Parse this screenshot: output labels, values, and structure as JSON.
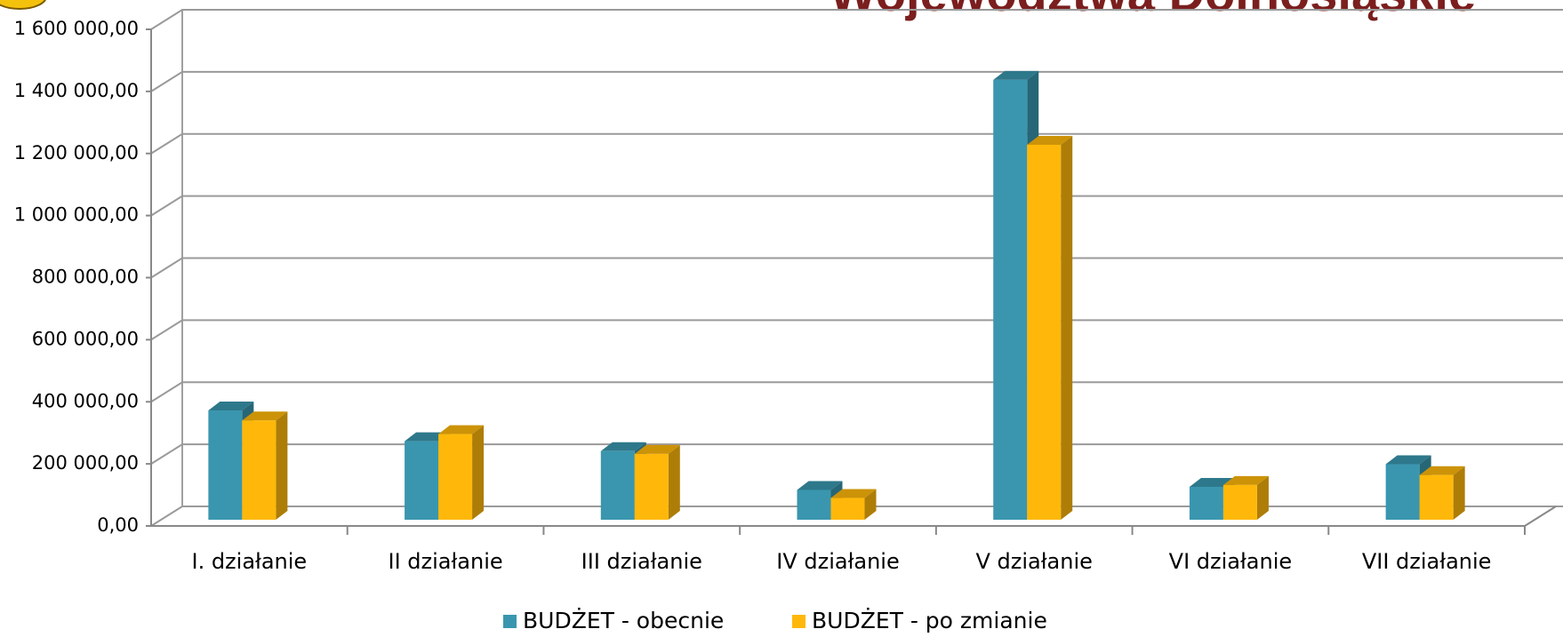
{
  "chart_data": {
    "type": "bar3d",
    "title": "Województwa Dolnośląskie",
    "categories": [
      "I. działanie",
      "II działanie",
      "III działanie",
      "IV działanie",
      "V działanie",
      "VI działanie",
      "VII działanie"
    ],
    "series": [
      {
        "name": "BUDŻET - obecnie",
        "color": "#3a96ae",
        "values": [
          352000,
          253000,
          221000,
          96000,
          1417000,
          106000,
          179000
        ]
      },
      {
        "name": "BUDŻET - po zmianie",
        "color": "#ffb80a",
        "values": [
          320000,
          276000,
          212000,
          70000,
          1208000,
          112000,
          144000
        ]
      }
    ],
    "ylim": [
      0,
      1600000
    ],
    "yticks": [
      {
        "value": 0,
        "label": "0,00"
      },
      {
        "value": 200000,
        "label": "200 000,00"
      },
      {
        "value": 400000,
        "label": "400 000,00"
      },
      {
        "value": 600000,
        "label": "600 000,00"
      },
      {
        "value": 800000,
        "label": "800 000,00"
      },
      {
        "value": 1000000,
        "label": "1 000 000,00"
      },
      {
        "value": 1200000,
        "label": "1 200 000,00"
      },
      {
        "value": 1400000,
        "label": "1 400 000,00"
      },
      {
        "value": 1600000,
        "label": "1 600 000,00"
      }
    ],
    "grid": true,
    "legend": "bottom"
  }
}
